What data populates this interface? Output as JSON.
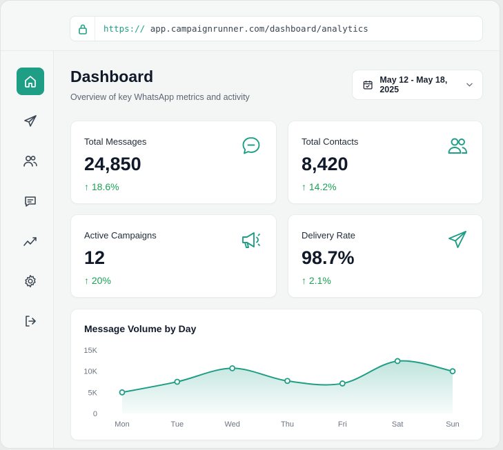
{
  "browser": {
    "url_scheme": "https://",
    "url_rest": "app.campaignrunner.com/dashboard/analytics"
  },
  "sidebar": {
    "items": [
      {
        "name": "home",
        "icon": "home-icon",
        "active": true
      },
      {
        "name": "campaigns",
        "icon": "send-icon",
        "active": false
      },
      {
        "name": "contacts",
        "icon": "users-icon",
        "active": false
      },
      {
        "name": "messages",
        "icon": "message-icon",
        "active": false
      },
      {
        "name": "analytics",
        "icon": "trend-icon",
        "active": false
      },
      {
        "name": "settings",
        "icon": "gear-icon",
        "active": false
      },
      {
        "name": "logout",
        "icon": "logout-icon",
        "active": false
      }
    ]
  },
  "header": {
    "title": "Dashboard",
    "subtitle": "Overview of key WhatsApp metrics and activity",
    "date_range": "May 12 - May 18, 2025"
  },
  "stats": [
    {
      "label": "Total Messages",
      "value": "24,850",
      "change": "18.6%",
      "icon": "chat-bubble-icon"
    },
    {
      "label": "Total Contacts",
      "value": "8,420",
      "change": "14.2%",
      "icon": "users-icon"
    },
    {
      "label": "Active Campaigns",
      "value": "12",
      "change": "20%",
      "icon": "megaphone-icon"
    },
    {
      "label": "Delivery Rate",
      "value": "98.7%",
      "change": "2.1%",
      "icon": "send-icon"
    }
  ],
  "colors": {
    "accent": "#1f9e86",
    "positive": "#19a352"
  },
  "chart_data": {
    "type": "area",
    "title": "Message Volume by Day",
    "categories": [
      "Mon",
      "Tue",
      "Wed",
      "Thu",
      "Fri",
      "Sat",
      "Sun"
    ],
    "values": [
      5000,
      7500,
      10700,
      7700,
      7100,
      12400,
      10000
    ],
    "yticks": [
      "15K",
      "10K",
      "5K",
      "0"
    ],
    "ylim": [
      0,
      15000
    ],
    "grid": false,
    "color": "#1f9e86"
  }
}
